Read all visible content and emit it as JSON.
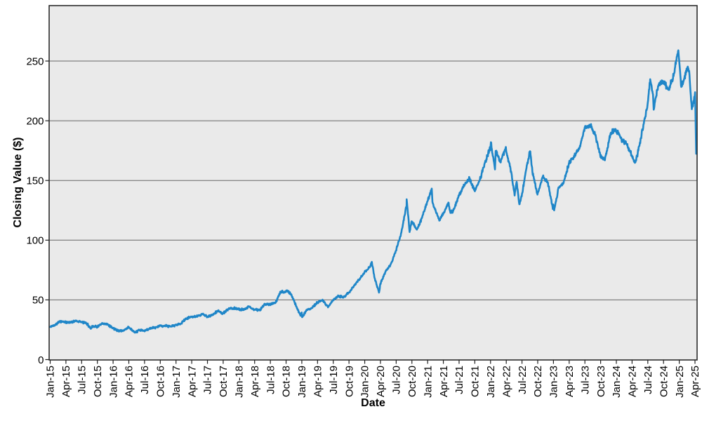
{
  "figure": {
    "background": "#ffffff",
    "plot_background": "#eaeaea",
    "grid_color": "#666666",
    "frame_color": "#1f1f1f",
    "tick_color": "#1f1f1f",
    "line_color": "#1f86c8"
  },
  "chart_data": {
    "type": "line",
    "title": "",
    "xlabel": "Date",
    "ylabel": "Closing Value ($)",
    "legend": "none",
    "grid": "horizontal",
    "ylim": [
      0,
      296.4
    ],
    "y_ticks": [
      0,
      50,
      100,
      150,
      200,
      250
    ],
    "x_tick_labels": [
      "Jan-15",
      "Apr-15",
      "Jul-15",
      "Oct-15",
      "Jan-16",
      "Apr-16",
      "Jul-16",
      "Oct-16",
      "Jan-17",
      "Apr-17",
      "Jul-17",
      "Oct-17",
      "Jan-18",
      "Apr-18",
      "Jul-18",
      "Oct-18",
      "Jan-19",
      "Apr-19",
      "Jul-19",
      "Oct-19",
      "Jan-20",
      "Apr-20",
      "Jul-20",
      "Oct-20",
      "Jan-21",
      "Apr-21",
      "Jul-21",
      "Oct-21",
      "Jan-22",
      "Apr-22",
      "Jul-22",
      "Oct-22",
      "Jan-23",
      "Apr-23",
      "Jul-23",
      "Oct-23",
      "Jan-24",
      "Apr-24",
      "Jul-24",
      "Oct-24",
      "Jan-25",
      "Apr-25"
    ],
    "x_tick_interval_months": 3,
    "series": [
      {
        "name": "Closing Value",
        "color": "#1f86c8",
        "points": [
          [
            "2015-01-02",
            27.3
          ],
          [
            "2015-01-30",
            29.3
          ],
          [
            "2015-02-27",
            32.1
          ],
          [
            "2015-03-31",
            31.1
          ],
          [
            "2015-04-30",
            31.3
          ],
          [
            "2015-05-29",
            32.6
          ],
          [
            "2015-06-30",
            31.4
          ],
          [
            "2015-07-31",
            30.3
          ],
          [
            "2015-08-24",
            25.8
          ],
          [
            "2015-08-31",
            28.2
          ],
          [
            "2015-09-30",
            27.6
          ],
          [
            "2015-10-30",
            29.9
          ],
          [
            "2015-11-30",
            29.6
          ],
          [
            "2015-12-31",
            26.3
          ],
          [
            "2016-01-29",
            24.3
          ],
          [
            "2016-02-29",
            24.2
          ],
          [
            "2016-03-31",
            27.2
          ],
          [
            "2016-04-29",
            23.4
          ],
          [
            "2016-05-12",
            22.6
          ],
          [
            "2016-05-31",
            25.0
          ],
          [
            "2016-06-30",
            23.9
          ],
          [
            "2016-07-29",
            26.1
          ],
          [
            "2016-08-31",
            26.5
          ],
          [
            "2016-09-30",
            28.3
          ],
          [
            "2016-10-31",
            28.4
          ],
          [
            "2016-11-30",
            27.6
          ],
          [
            "2016-12-30",
            29.0
          ],
          [
            "2017-01-31",
            30.3
          ],
          [
            "2017-02-28",
            34.2
          ],
          [
            "2017-03-31",
            35.9
          ],
          [
            "2017-04-28",
            35.9
          ],
          [
            "2017-05-31",
            38.2
          ],
          [
            "2017-06-30",
            36.0
          ],
          [
            "2017-07-31",
            37.2
          ],
          [
            "2017-08-31",
            41.0
          ],
          [
            "2017-09-29",
            38.5
          ],
          [
            "2017-10-31",
            42.3
          ],
          [
            "2017-11-30",
            43.0
          ],
          [
            "2017-12-29",
            42.3
          ],
          [
            "2018-01-31",
            41.9
          ],
          [
            "2018-02-28",
            44.5
          ],
          [
            "2018-03-29",
            41.9
          ],
          [
            "2018-04-30",
            41.3
          ],
          [
            "2018-05-31",
            46.7
          ],
          [
            "2018-06-29",
            46.3
          ],
          [
            "2018-07-31",
            47.6
          ],
          [
            "2018-08-31",
            56.9
          ],
          [
            "2018-09-28",
            56.4
          ],
          [
            "2018-10-03",
            58.0
          ],
          [
            "2018-10-31",
            54.7
          ],
          [
            "2018-11-30",
            44.6
          ],
          [
            "2018-12-24",
            36.7
          ],
          [
            "2018-12-31",
            39.4
          ],
          [
            "2019-01-03",
            35.5
          ],
          [
            "2019-01-31",
            41.6
          ],
          [
            "2019-02-28",
            43.3
          ],
          [
            "2019-03-29",
            47.5
          ],
          [
            "2019-04-30",
            50.2
          ],
          [
            "2019-05-31",
            43.8
          ],
          [
            "2019-06-28",
            49.5
          ],
          [
            "2019-07-31",
            53.3
          ],
          [
            "2019-08-30",
            52.2
          ],
          [
            "2019-09-30",
            56.0
          ],
          [
            "2019-10-31",
            62.2
          ],
          [
            "2019-11-29",
            66.8
          ],
          [
            "2019-12-31",
            73.4
          ],
          [
            "2020-01-31",
            77.4
          ],
          [
            "2020-02-12",
            81.8
          ],
          [
            "2020-02-28",
            68.3
          ],
          [
            "2020-03-23",
            56.1
          ],
          [
            "2020-03-31",
            63.6
          ],
          [
            "2020-04-30",
            73.4
          ],
          [
            "2020-05-29",
            79.5
          ],
          [
            "2020-06-30",
            91.2
          ],
          [
            "2020-07-31",
            106.3
          ],
          [
            "2020-08-31",
            129.0
          ],
          [
            "2020-09-01",
            134.2
          ],
          [
            "2020-09-18",
            106.8
          ],
          [
            "2020-09-30",
            115.8
          ],
          [
            "2020-10-30",
            108.9
          ],
          [
            "2020-11-30",
            119.1
          ],
          [
            "2020-12-31",
            132.7
          ],
          [
            "2021-01-25",
            143.2
          ],
          [
            "2021-01-29",
            132.0
          ],
          [
            "2021-02-26",
            121.3
          ],
          [
            "2021-03-08",
            116.4
          ],
          [
            "2021-03-31",
            122.2
          ],
          [
            "2021-04-30",
            131.5
          ],
          [
            "2021-05-12",
            122.8
          ],
          [
            "2021-05-28",
            124.6
          ],
          [
            "2021-06-30",
            137.0
          ],
          [
            "2021-07-30",
            145.9
          ],
          [
            "2021-08-31",
            151.8
          ],
          [
            "2021-09-30",
            141.5
          ],
          [
            "2021-10-29",
            149.8
          ],
          [
            "2021-11-30",
            165.3
          ],
          [
            "2021-12-31",
            177.6
          ],
          [
            "2022-01-03",
            182.0
          ],
          [
            "2022-01-27",
            159.2
          ],
          [
            "2022-01-31",
            174.8
          ],
          [
            "2022-02-28",
            165.1
          ],
          [
            "2022-03-29",
            178.0
          ],
          [
            "2022-03-31",
            174.6
          ],
          [
            "2022-04-29",
            157.7
          ],
          [
            "2022-05-19",
            137.4
          ],
          [
            "2022-05-31",
            148.8
          ],
          [
            "2022-06-16",
            130.1
          ],
          [
            "2022-06-30",
            136.7
          ],
          [
            "2022-07-29",
            162.5
          ],
          [
            "2022-08-17",
            174.5
          ],
          [
            "2022-08-31",
            157.2
          ],
          [
            "2022-09-30",
            138.2
          ],
          [
            "2022-10-31",
            153.3
          ],
          [
            "2022-11-30",
            148.0
          ],
          [
            "2022-12-28",
            126.0
          ],
          [
            "2022-12-30",
            129.9
          ],
          [
            "2023-01-05",
            125.0
          ],
          [
            "2023-01-31",
            144.3
          ],
          [
            "2023-02-28",
            147.4
          ],
          [
            "2023-03-31",
            164.9
          ],
          [
            "2023-04-28",
            169.7
          ],
          [
            "2023-05-31",
            177.3
          ],
          [
            "2023-06-30",
            194.0
          ],
          [
            "2023-07-31",
            196.5
          ],
          [
            "2023-08-31",
            187.9
          ],
          [
            "2023-09-29",
            171.2
          ],
          [
            "2023-10-26",
            166.9
          ],
          [
            "2023-10-31",
            170.8
          ],
          [
            "2023-11-30",
            190.0
          ],
          [
            "2023-12-29",
            192.5
          ],
          [
            "2024-01-31",
            184.4
          ],
          [
            "2024-02-29",
            180.8
          ],
          [
            "2024-03-28",
            171.5
          ],
          [
            "2024-04-19",
            165.0
          ],
          [
            "2024-04-30",
            170.3
          ],
          [
            "2024-05-31",
            192.3
          ],
          [
            "2024-06-28",
            210.6
          ],
          [
            "2024-07-15",
            234.8
          ],
          [
            "2024-07-31",
            222.1
          ],
          [
            "2024-08-05",
            209.3
          ],
          [
            "2024-08-30",
            229.0
          ],
          [
            "2024-09-30",
            233.0
          ],
          [
            "2024-10-31",
            226.0
          ],
          [
            "2024-11-29",
            237.3
          ],
          [
            "2024-12-26",
            259.0
          ],
          [
            "2024-12-31",
            250.4
          ],
          [
            "2025-01-13",
            228.3
          ],
          [
            "2025-01-31",
            236.0
          ],
          [
            "2025-02-20",
            245.3
          ],
          [
            "2025-02-28",
            241.8
          ],
          [
            "2025-03-13",
            209.7
          ],
          [
            "2025-03-31",
            222.1
          ],
          [
            "2025-04-02",
            223.9
          ],
          [
            "2025-04-08",
            172.4
          ]
        ]
      }
    ]
  }
}
